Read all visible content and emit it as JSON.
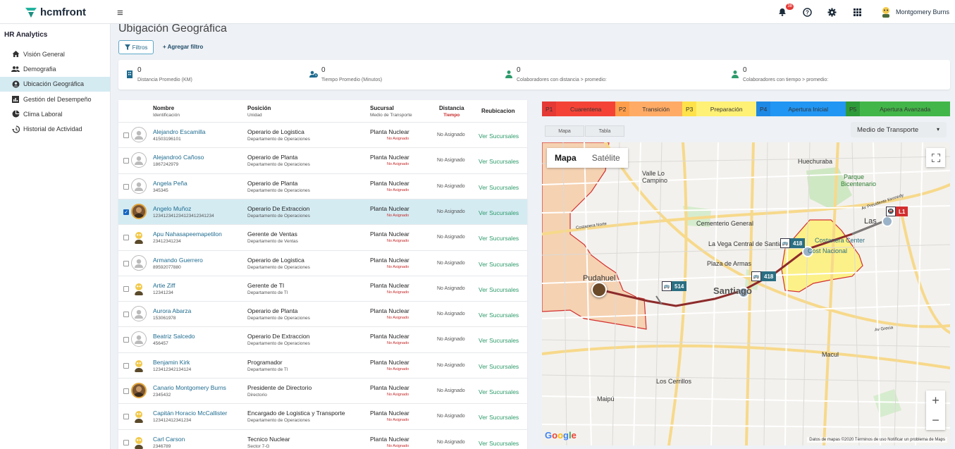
{
  "app": {
    "name": "hcmfront"
  },
  "header": {
    "notification_count": "38",
    "user_name": "Montgomery Burns"
  },
  "sidebar": {
    "title": "HR Analytics",
    "items": [
      {
        "label": "Visión General",
        "icon": "home-icon"
      },
      {
        "label": "Demografia",
        "icon": "people-icon"
      },
      {
        "label": "Ubicación Geográfica",
        "icon": "location-icon",
        "active": true
      },
      {
        "label": "Gestión del Desempeño",
        "icon": "bar-chart-icon"
      },
      {
        "label": "Clima Laboral",
        "icon": "pie-chart-icon"
      },
      {
        "label": "Historial de Actividad",
        "icon": "history-icon"
      }
    ]
  },
  "page": {
    "title": "Ubigación Geográfica",
    "filters_label": "Filtros",
    "add_filter_label": "+ Agregar filtro"
  },
  "kpis": [
    {
      "value": "0",
      "label": "Distancia Promedio (KM)",
      "icon": "building-icon"
    },
    {
      "value": "0",
      "label": "Tiempo Promedio (Minutos)",
      "icon": "people-clock-icon"
    },
    {
      "value": "0",
      "label": "Colaboradores con distancia > promedio:",
      "icon": "person-icon"
    },
    {
      "value": "0",
      "label": "Colaboradores con tiempo > promedio:",
      "icon": "person-icon"
    }
  ],
  "table": {
    "headers": {
      "name": "Nombre",
      "name_sub": "Identificación",
      "position": "Posición",
      "position_sub": "Unidad",
      "branch": "Sucursal",
      "branch_sub": "Medio de Transporte",
      "distance": "Distancia",
      "distance_sub": "Tiempo",
      "relocation": "Reubicacion"
    },
    "rows": [
      {
        "name": "Alejandro Escamilla",
        "id": "41503196101",
        "position": "Operario de Logistica",
        "unit": "Departamento de Operaciones",
        "branch": "Planta Nuclear",
        "transport": "No Asignado",
        "distance": "No Asignado",
        "relocation": "Ver Sucursales",
        "selected": false,
        "avatar": "default"
      },
      {
        "name": "Alejandroó Cañoso",
        "id": "1867242979",
        "position": "Operario de Planta",
        "unit": "Departamento de Operaciones",
        "branch": "Planta Nuclear",
        "transport": "No Asignado",
        "distance": "No Asignado",
        "relocation": "Ver Sucursales",
        "selected": false,
        "avatar": "default"
      },
      {
        "name": "Angela Peña",
        "id": "345345",
        "position": "Operario de Planta",
        "unit": "Departamento de Operaciones",
        "branch": "Planta Nuclear",
        "transport": "No Asignado",
        "distance": "No Asignado",
        "relocation": "Ver Sucursales",
        "selected": false,
        "avatar": "default"
      },
      {
        "name": "Angelo Muñoz",
        "id": "123412341234123412341234",
        "position": "Operario De Extraccion",
        "unit": "Departamento de Operaciones",
        "branch": "Planta Nuclear",
        "transport": "No Asignado",
        "distance": "No Asignado",
        "relocation": "Ver Sucursales",
        "selected": true,
        "avatar": "photo"
      },
      {
        "name": "Apu Nahasapeemapetilon",
        "id": "23412341234",
        "position": "Gerente de Ventas",
        "unit": "Departamento de Ventas",
        "branch": "Planta Nuclear",
        "transport": "No Asignado",
        "distance": "No Asignado",
        "relocation": "Ver Sucursales",
        "selected": false,
        "avatar": "cartoon"
      },
      {
        "name": "Armando Guerrero",
        "id": "89592077880",
        "position": "Operario de Logistica",
        "unit": "Departamento de Operaciones",
        "branch": "Planta Nuclear",
        "transport": "No Asignado",
        "distance": "No Asignado",
        "relocation": "Ver Sucursales",
        "selected": false,
        "avatar": "default"
      },
      {
        "name": "Artie Ziff",
        "id": "12341234",
        "position": "Gerente de TI",
        "unit": "Departamento de TI",
        "branch": "Planta Nuclear",
        "transport": "No Asignado",
        "distance": "No Asignado",
        "relocation": "Ver Sucursales",
        "selected": false,
        "avatar": "cartoon"
      },
      {
        "name": "Aurora Abarza",
        "id": "153061978",
        "position": "Operario de Planta",
        "unit": "Departamento de Operaciones",
        "branch": "Planta Nuclear",
        "transport": "No Asignado",
        "distance": "No Asignado",
        "relocation": "Ver Sucursales",
        "selected": false,
        "avatar": "default"
      },
      {
        "name": "Beatriz Salcedo",
        "id": "456457",
        "position": "Operario De Extraccion",
        "unit": "Departamento de Operaciones",
        "branch": "Planta Nuclear",
        "transport": "No Asignado",
        "distance": "No Asignado",
        "relocation": "Ver Sucursales",
        "selected": false,
        "avatar": "default"
      },
      {
        "name": "Benjamin Kirk",
        "id": "123412342134124",
        "position": "Programador",
        "unit": "Departamento de TI",
        "branch": "Planta Nuclear",
        "transport": "No Asignado",
        "distance": "No Asignado",
        "relocation": "Ver Sucursales",
        "selected": false,
        "avatar": "cartoon"
      },
      {
        "name": "Canario Montgomery Burns",
        "id": "2345432",
        "position": "Presidente de Directorio",
        "unit": "Directorio",
        "branch": "Planta Nuclear",
        "transport": "No Asignado",
        "distance": "No Asignado",
        "relocation": "Ver Sucursales",
        "selected": false,
        "avatar": "photo"
      },
      {
        "name": "Capitán Horacio McCallister",
        "id": "123412412341234",
        "position": "Encargado de Logistica y Transporte",
        "unit": "Departamento de Operaciones",
        "branch": "Planta Nuclear",
        "transport": "No Asignado",
        "distance": "No Asignado",
        "relocation": "Ver Sucursales",
        "selected": false,
        "avatar": "cartoon"
      },
      {
        "name": "Carl Carson",
        "id": "2346789",
        "position": "Tecnico Nuclear",
        "unit": "Sector 7-G",
        "branch": "Planta Nuclear",
        "transport": "No Asignado",
        "distance": "No Asignado",
        "relocation": "Ver Sucursales",
        "selected": false,
        "avatar": "cartoon"
      }
    ]
  },
  "phases": [
    {
      "code": "P1",
      "label": "Cuarentena",
      "code_color": "#e53935",
      "color": "#f44336"
    },
    {
      "code": "P2",
      "label": "Transición",
      "code_color": "#ff9e4a",
      "color": "#ffab66"
    },
    {
      "code": "P3",
      "label": "Preparación",
      "code_color": "#ffe24a",
      "color": "#fff176"
    },
    {
      "code": "P4",
      "label": "Apertura Inicial",
      "code_color": "#1e88e5",
      "color": "#2196f3"
    },
    {
      "code": "P5",
      "label": "Apertura Avanzada",
      "code_color": "#2e9b3a",
      "color": "#43b649"
    }
  ],
  "view_tabs": [
    "Mapa",
    "Tabla"
  ],
  "transport_select": "Medio de Transporte",
  "map": {
    "toggle": [
      "Mapa",
      "Satélite"
    ],
    "labels": [
      "Huechuraba",
      "Valle Lo",
      "Campino",
      "Parque",
      "Bicentenario",
      "Cementerio General",
      "La Vega Central de Santiago",
      "Plaza de Armas",
      "Costanera Center",
      "Cost Nacional",
      "Pudahuel",
      "Santiago",
      "Las",
      "Macul",
      "Los Cerrillos",
      "Maipú",
      "Costanera Norte",
      "Av Presidente Kennedy",
      "Av Grecia"
    ],
    "buses": [
      {
        "number": "418",
        "type": "bus"
      },
      {
        "number": "418",
        "type": "bus"
      },
      {
        "number": "514",
        "type": "bus"
      },
      {
        "number": "L1",
        "type": "metro"
      }
    ],
    "google": "Google",
    "attribution": "Datos de mapas ©2020     Términos de uso     Notificar un problema de Maps"
  },
  "colors": {
    "accent": "#1e6b8f",
    "green_link": "#2e9b6b",
    "selected_row": "#d4ebf2",
    "route": "#8d2b2b"
  }
}
